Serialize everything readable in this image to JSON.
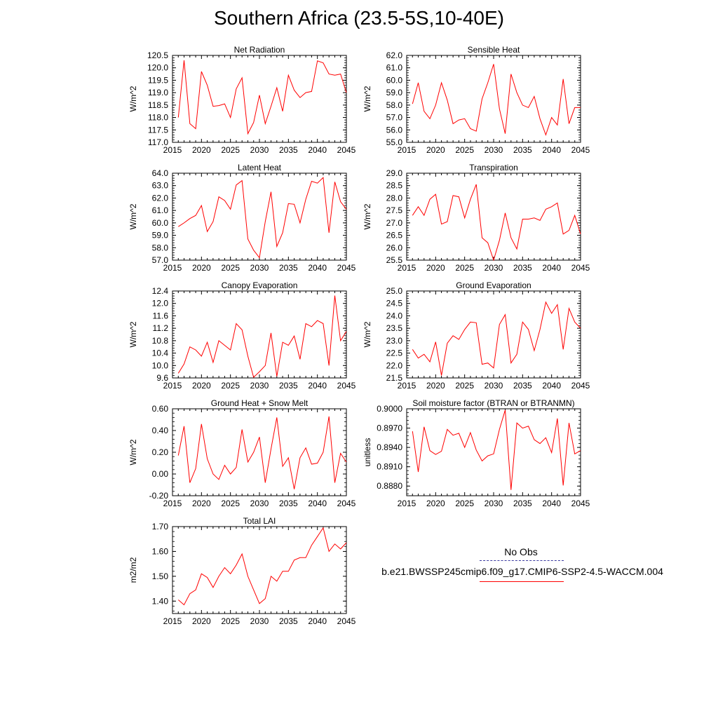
{
  "title": "Southern Africa (23.5-5S,10-40E)",
  "legend": {
    "obs_label": "No Obs",
    "case_label": "b.e21.BWSSP245cmip6.f09_g17.CMIP6-SSP2-4.5-WACCM.004",
    "case_color": "#ff0000"
  },
  "chart_data": [
    {
      "type": "line",
      "title": "Net Radiation",
      "ylabel": "W/m^2",
      "xlim": [
        2015,
        2045
      ],
      "ylim": [
        117.0,
        120.5
      ],
      "xticks": [
        2015,
        2020,
        2025,
        2030,
        2035,
        2040,
        2045
      ],
      "yticks": [
        117.0,
        117.5,
        118.0,
        118.5,
        119.0,
        119.5,
        120.0,
        120.5
      ],
      "ytick_labels": [
        "117.0",
        "117.5",
        "118.0",
        "118.5",
        "119.0",
        "119.5",
        "120.0",
        "120.5"
      ],
      "x": [
        2016,
        2017,
        2018,
        2019,
        2020,
        2021,
        2022,
        2023,
        2024,
        2025,
        2026,
        2027,
        2028,
        2029,
        2030,
        2031,
        2032,
        2033,
        2034,
        2035,
        2036,
        2037,
        2038,
        2039,
        2040,
        2041,
        2042,
        2043,
        2044,
        2045
      ],
      "y": [
        118.0,
        120.3,
        117.75,
        117.55,
        119.85,
        119.3,
        118.45,
        118.48,
        118.55,
        118.0,
        119.15,
        119.6,
        117.35,
        117.8,
        118.9,
        117.75,
        118.45,
        119.2,
        118.25,
        119.7,
        119.1,
        118.8,
        119.0,
        119.05,
        120.28,
        120.2,
        119.75,
        119.7,
        119.75,
        119.0
      ],
      "color": "#ff0000"
    },
    {
      "type": "line",
      "title": "Sensible Heat",
      "ylabel": "W/m^2",
      "xlim": [
        2015,
        2045
      ],
      "ylim": [
        55.0,
        62.0
      ],
      "xticks": [
        2015,
        2020,
        2025,
        2030,
        2035,
        2040,
        2045
      ],
      "yticks": [
        55.0,
        56.0,
        57.0,
        58.0,
        59.0,
        60.0,
        61.0,
        62.0
      ],
      "ytick_labels": [
        "55.0",
        "56.0",
        "57.0",
        "58.0",
        "59.0",
        "60.0",
        "61.0",
        "62.0"
      ],
      "x": [
        2016,
        2017,
        2018,
        2019,
        2020,
        2021,
        2022,
        2023,
        2024,
        2025,
        2026,
        2027,
        2028,
        2029,
        2030,
        2031,
        2032,
        2033,
        2034,
        2035,
        2036,
        2037,
        2038,
        2039,
        2040,
        2041,
        2042,
        2043,
        2044,
        2045
      ],
      "y": [
        58.1,
        59.8,
        57.5,
        56.9,
        58.0,
        59.8,
        58.4,
        56.5,
        56.8,
        56.9,
        56.1,
        55.9,
        58.5,
        59.8,
        61.3,
        57.7,
        55.7,
        60.5,
        59.0,
        58.0,
        57.8,
        58.7,
        56.9,
        55.6,
        57.0,
        56.4,
        60.1,
        56.5,
        57.8,
        57.8
      ],
      "color": "#ff0000"
    },
    {
      "type": "line",
      "title": "Latent Heat",
      "ylabel": "W/m^2",
      "xlim": [
        2015,
        2045
      ],
      "ylim": [
        57.0,
        64.0
      ],
      "xticks": [
        2015,
        2020,
        2025,
        2030,
        2035,
        2040,
        2045
      ],
      "yticks": [
        57.0,
        58.0,
        59.0,
        60.0,
        61.0,
        62.0,
        63.0,
        64.0
      ],
      "ytick_labels": [
        "57.0",
        "58.0",
        "59.0",
        "60.0",
        "61.0",
        "62.0",
        "63.0",
        "64.0"
      ],
      "x": [
        2016,
        2017,
        2018,
        2019,
        2020,
        2021,
        2022,
        2023,
        2024,
        2025,
        2026,
        2027,
        2028,
        2029,
        2030,
        2031,
        2032,
        2033,
        2034,
        2035,
        2036,
        2037,
        2038,
        2039,
        2040,
        2041,
        2042,
        2043,
        2044,
        2045
      ],
      "y": [
        59.7,
        60.0,
        60.35,
        60.6,
        61.4,
        59.3,
        60.1,
        62.1,
        61.8,
        61.1,
        63.05,
        63.4,
        58.7,
        57.8,
        57.2,
        60.1,
        62.5,
        58.1,
        59.2,
        61.55,
        61.5,
        60.0,
        61.9,
        63.35,
        63.2,
        63.65,
        59.2,
        63.3,
        61.7,
        61.1
      ],
      "color": "#ff0000"
    },
    {
      "type": "line",
      "title": "Transpiration",
      "ylabel": "W/m^2",
      "xlim": [
        2015,
        2045
      ],
      "ylim": [
        25.5,
        29.0
      ],
      "xticks": [
        2015,
        2020,
        2025,
        2030,
        2035,
        2040,
        2045
      ],
      "yticks": [
        25.5,
        26.0,
        26.5,
        27.0,
        27.5,
        28.0,
        28.5,
        29.0
      ],
      "ytick_labels": [
        "25.5",
        "26.0",
        "26.5",
        "27.0",
        "27.5",
        "28.0",
        "28.5",
        "29.0"
      ],
      "x": [
        2016,
        2017,
        2018,
        2019,
        2020,
        2021,
        2022,
        2023,
        2024,
        2025,
        2026,
        2027,
        2028,
        2029,
        2030,
        2031,
        2032,
        2033,
        2034,
        2035,
        2036,
        2037,
        2038,
        2039,
        2040,
        2041,
        2042,
        2043,
        2044,
        2045
      ],
      "y": [
        27.3,
        27.65,
        27.3,
        27.95,
        28.15,
        26.95,
        27.05,
        28.1,
        28.05,
        27.2,
        27.95,
        28.55,
        26.4,
        26.2,
        25.5,
        26.3,
        27.4,
        26.4,
        25.95,
        27.15,
        27.15,
        27.2,
        27.1,
        27.55,
        27.65,
        27.8,
        26.55,
        26.7,
        27.3,
        26.55
      ],
      "color": "#ff0000"
    },
    {
      "type": "line",
      "title": "Canopy Evaporation",
      "ylabel": "W/m^2",
      "xlim": [
        2015,
        2045
      ],
      "ylim": [
        9.6,
        12.4
      ],
      "xticks": [
        2015,
        2020,
        2025,
        2030,
        2035,
        2040,
        2045
      ],
      "yticks": [
        9.6,
        10.0,
        10.4,
        10.8,
        11.2,
        11.6,
        12.0,
        12.4
      ],
      "ytick_labels": [
        "9.6",
        "10.0",
        "10.4",
        "10.8",
        "11.2",
        "11.6",
        "12.0",
        "12.4"
      ],
      "x": [
        2016,
        2017,
        2018,
        2019,
        2020,
        2021,
        2022,
        2023,
        2024,
        2025,
        2026,
        2027,
        2028,
        2029,
        2030,
        2031,
        2032,
        2033,
        2034,
        2035,
        2036,
        2037,
        2038,
        2039,
        2040,
        2041,
        2042,
        2043,
        2044,
        2045
      ],
      "y": [
        9.75,
        10.05,
        10.6,
        10.5,
        10.3,
        10.75,
        10.1,
        10.8,
        10.65,
        10.5,
        11.35,
        11.15,
        10.3,
        9.62,
        9.8,
        10.0,
        11.05,
        9.65,
        10.75,
        10.65,
        10.95,
        10.2,
        11.35,
        11.25,
        11.45,
        11.35,
        10.0,
        12.25,
        10.8,
        11.1
      ],
      "color": "#ff0000"
    },
    {
      "type": "line",
      "title": "Ground Evaporation",
      "ylabel": "W/m^2",
      "xlim": [
        2015,
        2045
      ],
      "ylim": [
        21.5,
        25.0
      ],
      "xticks": [
        2015,
        2020,
        2025,
        2030,
        2035,
        2040,
        2045
      ],
      "yticks": [
        21.5,
        22.0,
        22.5,
        23.0,
        23.5,
        24.0,
        24.5,
        25.0
      ],
      "ytick_labels": [
        "21.5",
        "22.0",
        "22.5",
        "23.0",
        "23.5",
        "24.0",
        "24.5",
        "25.0"
      ],
      "x": [
        2016,
        2017,
        2018,
        2019,
        2020,
        2021,
        2022,
        2023,
        2024,
        2025,
        2026,
        2027,
        2028,
        2029,
        2030,
        2031,
        2032,
        2033,
        2034,
        2035,
        2036,
        2037,
        2038,
        2039,
        2040,
        2041,
        2042,
        2043,
        2044,
        2045
      ],
      "y": [
        22.65,
        22.3,
        22.45,
        22.15,
        22.95,
        21.6,
        22.9,
        23.2,
        23.05,
        23.45,
        23.75,
        23.72,
        22.05,
        22.1,
        21.9,
        23.65,
        24.05,
        22.1,
        22.45,
        23.75,
        23.45,
        22.6,
        23.45,
        24.55,
        24.1,
        24.45,
        22.65,
        24.3,
        23.75,
        23.5
      ],
      "color": "#ff0000"
    },
    {
      "type": "line",
      "title": "Ground Heat + Snow Melt",
      "ylabel": "W/m^2",
      "xlim": [
        2015,
        2045
      ],
      "ylim": [
        -0.2,
        0.6
      ],
      "xticks": [
        2015,
        2020,
        2025,
        2030,
        2035,
        2040,
        2045
      ],
      "yticks": [
        -0.2,
        0.0,
        0.2,
        0.4,
        0.6
      ],
      "ytick_labels": [
        "-0.20",
        "0.00",
        "0.20",
        "0.40",
        "0.60"
      ],
      "x": [
        2016,
        2017,
        2018,
        2019,
        2020,
        2021,
        2022,
        2023,
        2024,
        2025,
        2026,
        2027,
        2028,
        2029,
        2030,
        2031,
        2032,
        2033,
        2034,
        2035,
        2036,
        2037,
        2038,
        2039,
        2040,
        2041,
        2042,
        2043,
        2044,
        2045
      ],
      "y": [
        0.17,
        0.44,
        -0.08,
        0.05,
        0.46,
        0.14,
        0.0,
        -0.05,
        0.08,
        0.0,
        0.06,
        0.41,
        0.11,
        0.2,
        0.34,
        -0.08,
        0.23,
        0.52,
        0.07,
        0.15,
        -0.14,
        0.15,
        0.24,
        0.09,
        0.1,
        0.2,
        0.53,
        -0.08,
        0.19,
        0.11
      ],
      "color": "#ff0000"
    },
    {
      "type": "line",
      "title": "Soil moisture factor (BTRAN or BTRANMN)",
      "ylabel": "unitless",
      "xlim": [
        2015,
        2045
      ],
      "ylim": [
        0.8865,
        0.9
      ],
      "xticks": [
        2015,
        2020,
        2025,
        2030,
        2035,
        2040,
        2045
      ],
      "yticks": [
        0.888,
        0.891,
        0.894,
        0.897,
        0.9
      ],
      "ytick_labels": [
        "0.8880",
        "0.8910",
        "0.8940",
        "0.8970",
        "0.9000"
      ],
      "x": [
        2016,
        2017,
        2018,
        2019,
        2020,
        2021,
        2022,
        2023,
        2024,
        2025,
        2026,
        2027,
        2028,
        2029,
        2030,
        2031,
        2032,
        2033,
        2034,
        2035,
        2036,
        2037,
        2038,
        2039,
        2040,
        2041,
        2042,
        2043,
        2044,
        2045
      ],
      "y": [
        0.8965,
        0.8902,
        0.8972,
        0.8935,
        0.8929,
        0.8934,
        0.8968,
        0.8959,
        0.8962,
        0.894,
        0.8963,
        0.8936,
        0.8919,
        0.8927,
        0.893,
        0.8968,
        0.8998,
        0.8874,
        0.8978,
        0.897,
        0.8973,
        0.8952,
        0.8946,
        0.8955,
        0.8932,
        0.8985,
        0.8881,
        0.8978,
        0.893,
        0.8935
      ],
      "color": "#ff0000"
    },
    {
      "type": "line",
      "title": "Total LAI",
      "ylabel": "m2/m2",
      "xlim": [
        2015,
        2045
      ],
      "ylim": [
        1.35,
        1.7
      ],
      "xticks": [
        2015,
        2020,
        2025,
        2030,
        2035,
        2040,
        2045
      ],
      "yticks": [
        1.4,
        1.5,
        1.6,
        1.7
      ],
      "ytick_labels": [
        "1.40",
        "1.50",
        "1.60",
        "1.70"
      ],
      "x": [
        2016,
        2017,
        2018,
        2019,
        2020,
        2021,
        2022,
        2023,
        2024,
        2025,
        2026,
        2027,
        2028,
        2029,
        2030,
        2031,
        2032,
        2033,
        2034,
        2035,
        2036,
        2037,
        2038,
        2039,
        2040,
        2041,
        2042,
        2043,
        2044,
        2045
      ],
      "y": [
        1.405,
        1.385,
        1.43,
        1.445,
        1.51,
        1.495,
        1.455,
        1.5,
        1.535,
        1.51,
        1.545,
        1.59,
        1.5,
        1.445,
        1.39,
        1.41,
        1.5,
        1.48,
        1.52,
        1.52,
        1.565,
        1.575,
        1.575,
        1.625,
        1.66,
        1.695,
        1.6,
        1.63,
        1.61,
        1.635
      ],
      "color": "#ff0000"
    }
  ]
}
